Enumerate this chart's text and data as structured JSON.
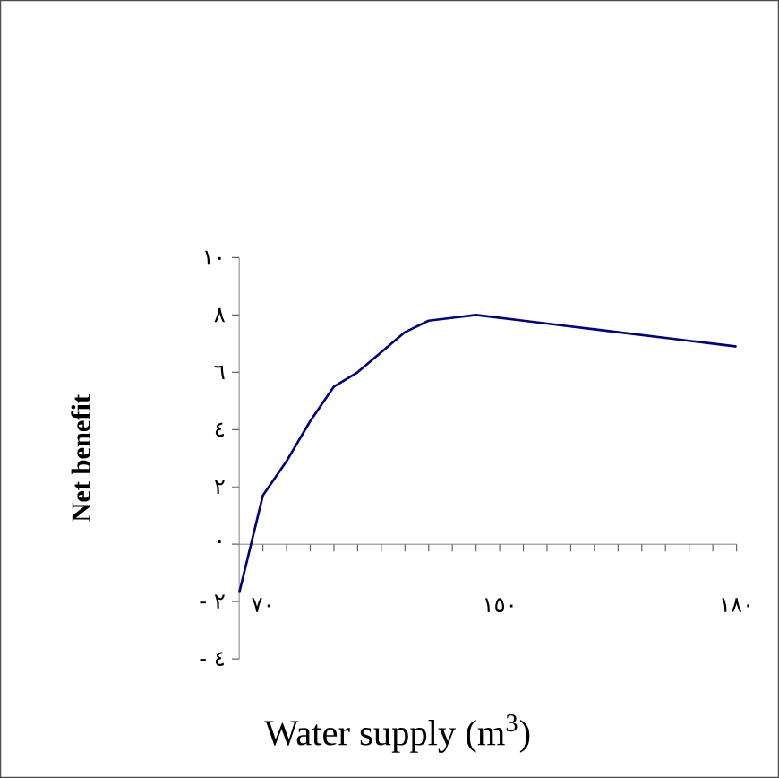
{
  "chart_data": {
    "type": "line",
    "xlabel": "Water supply (m$^{3}$)",
    "ylabel": "**Net benefit**",
    "categories": [
      null,
      "٧٠",
      null,
      null,
      null,
      null,
      null,
      null,
      null,
      null,
      null,
      "١٥٠",
      null,
      null,
      null,
      null,
      null,
      null,
      null,
      null,
      null,
      "١٨٠"
    ],
    "series": [
      {
        "color": "#000080",
        "values": [
          -1.7,
          1.7,
          2.9,
          4.3,
          5.5,
          6.0,
          6.7,
          7.4,
          7.8,
          7.9,
          8.0,
          7.9,
          7.8,
          7.7,
          7.6,
          7.5,
          7.4,
          7.3,
          7.2,
          7.1,
          7.0,
          6.9
        ]
      }
    ],
    "ylim": [
      -4,
      10
    ],
    "yticks": [
      {
        "value": -4,
        "label": "- ٤"
      },
      {
        "value": -2,
        "label": "- ٢"
      },
      {
        "value": 0,
        "label": "٠"
      },
      {
        "value": 2,
        "label": "٢"
      },
      {
        "value": 4,
        "label": "٤"
      },
      {
        "value": 6,
        "label": "٦"
      },
      {
        "value": 8,
        "label": "٨"
      },
      {
        "value": 10,
        "label": "١٠"
      }
    ],
    "marker": "none",
    "line_style": "solid"
  }
}
